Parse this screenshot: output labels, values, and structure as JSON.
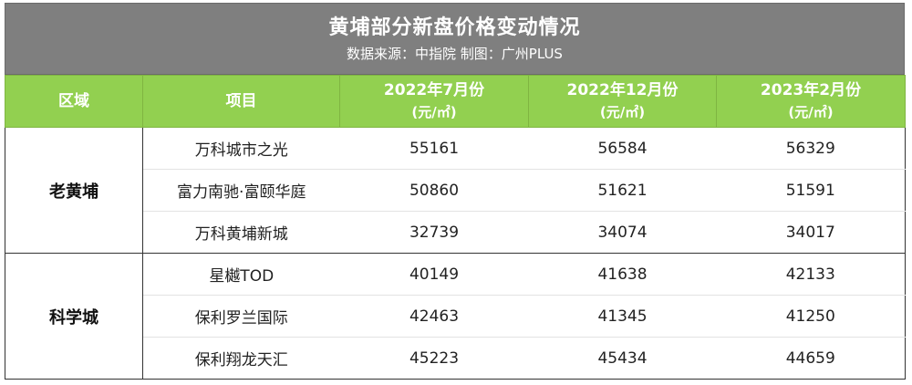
{
  "title": "黄埔部分新盘价格变动情况",
  "subtitle": "数据来源：中指院  制图：广州PLUS",
  "headers": {
    "region": "区域",
    "project": "项目",
    "col1_period": "2022年7月份",
    "col1_unit": "(元/㎡)",
    "col2_period": "2022年12月份",
    "col2_unit": "(元/㎡)",
    "col3_period": "2023年2月份",
    "col3_unit": "(元/㎡)"
  },
  "groups": [
    {
      "region": "老黄埔",
      "rows": [
        {
          "project": "万科城市之光",
          "v1": "55161",
          "v2": "56584",
          "v3": "56329"
        },
        {
          "project": "富力南驰·富颐华庭",
          "v1": "50860",
          "v2": "51621",
          "v3": "51591"
        },
        {
          "project": "万科黄埔新城",
          "v1": "32739",
          "v2": "34074",
          "v3": "34017"
        }
      ]
    },
    {
      "region": "科学城",
      "rows": [
        {
          "project": "星樾TOD",
          "v1": "40149",
          "v2": "41638",
          "v3": "42133"
        },
        {
          "project": "保利罗兰国际",
          "v1": "42463",
          "v2": "41345",
          "v3": "41250"
        },
        {
          "project": "保利翔龙天汇",
          "v1": "45223",
          "v2": "45434",
          "v3": "44659"
        }
      ]
    }
  ]
}
